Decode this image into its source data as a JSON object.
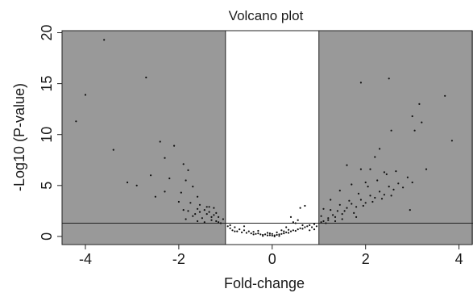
{
  "chart_data": {
    "type": "scatter",
    "title": "Volcano plot",
    "xlabel": "Fold-change",
    "ylabel": "-Log10 (P-value)",
    "xlim": [
      -4.5,
      4.3
    ],
    "ylim": [
      -0.8,
      20.2
    ],
    "x_ticks": [
      -4,
      -2,
      0,
      2,
      4
    ],
    "y_ticks": [
      0,
      5,
      10,
      15,
      20
    ],
    "x_tick_labels": [
      "-4",
      "-2",
      "0",
      "2",
      "4"
    ],
    "y_tick_labels": [
      "0",
      "5",
      "10",
      "15",
      "20"
    ],
    "fold_change_threshold": 1,
    "pvalue_threshold_log10": 1.3,
    "grid": false,
    "colors": {
      "shaded_region": "#999999",
      "point": "#111111",
      "axis": "#222222",
      "background": "#ffffff"
    },
    "points": [
      [
        -3.6,
        19.3
      ],
      [
        -4.0,
        13.9
      ],
      [
        -4.2,
        11.3
      ],
      [
        -2.7,
        15.6
      ],
      [
        -3.4,
        8.5
      ],
      [
        -2.4,
        9.3
      ],
      [
        -2.1,
        8.9
      ],
      [
        -2.3,
        7.7
      ],
      [
        -1.9,
        7.1
      ],
      [
        -1.8,
        6.5
      ],
      [
        -2.6,
        6.0
      ],
      [
        -2.2,
        5.7
      ],
      [
        -3.1,
        5.3
      ],
      [
        -2.9,
        5.0
      ],
      [
        -1.85,
        5.5
      ],
      [
        -1.7,
        4.9
      ],
      [
        -2.5,
        3.9
      ],
      [
        -2.0,
        3.4
      ],
      [
        -1.6,
        3.9
      ],
      [
        -1.55,
        3.1
      ],
      [
        -1.45,
        2.6
      ],
      [
        -1.35,
        2.4
      ],
      [
        -1.25,
        2.1
      ],
      [
        -1.15,
        1.9
      ],
      [
        -1.3,
        1.6
      ],
      [
        -1.8,
        2.5
      ],
      [
        -1.65,
        2.2
      ],
      [
        -1.5,
        1.8
      ],
      [
        -1.4,
        2.9
      ],
      [
        -1.2,
        1.5
      ],
      [
        -1.1,
        1.3
      ],
      [
        -1.05,
        1.7
      ],
      [
        -1.9,
        2.6
      ],
      [
        -1.7,
        2.0
      ],
      [
        -1.6,
        1.5
      ],
      [
        -1.75,
        3.3
      ],
      [
        -1.25,
        2.8
      ],
      [
        -1.45,
        1.4
      ],
      [
        -1.55,
        2.4
      ],
      [
        -1.95,
        4.3
      ],
      [
        -2.3,
        4.4
      ],
      [
        -1.35,
        2.9
      ],
      [
        -1.85,
        1.7
      ],
      [
        -1.15,
        1.4
      ],
      [
        -1.6,
        2.7
      ],
      [
        -1.4,
        2.2
      ],
      [
        -1.3,
        1.9
      ],
      [
        -1.2,
        2.3
      ],
      [
        -0.95,
        1.0
      ],
      [
        -0.9,
        0.8
      ],
      [
        -0.85,
        0.6
      ],
      [
        -0.8,
        0.9
      ],
      [
        -0.75,
        0.5
      ],
      [
        -0.7,
        0.7
      ],
      [
        -0.65,
        0.4
      ],
      [
        -0.6,
        0.6
      ],
      [
        -0.55,
        0.35
      ],
      [
        -0.5,
        0.5
      ],
      [
        -0.45,
        0.3
      ],
      [
        -0.4,
        0.45
      ],
      [
        -0.35,
        0.25
      ],
      [
        -0.3,
        0.3
      ],
      [
        -0.25,
        0.2
      ],
      [
        -0.2,
        0.15
      ],
      [
        -0.15,
        0.2
      ],
      [
        -0.1,
        0.1
      ],
      [
        -0.05,
        0.12
      ],
      [
        0.0,
        0.08
      ],
      [
        0.05,
        0.1
      ],
      [
        0.1,
        0.15
      ],
      [
        0.15,
        0.2
      ],
      [
        0.2,
        0.25
      ],
      [
        0.25,
        0.3
      ],
      [
        0.3,
        0.4
      ],
      [
        0.35,
        0.35
      ],
      [
        0.4,
        0.5
      ],
      [
        0.45,
        0.6
      ],
      [
        0.5,
        0.55
      ],
      [
        0.55,
        0.7
      ],
      [
        0.6,
        0.8
      ],
      [
        0.65,
        0.75
      ],
      [
        0.7,
        0.9
      ],
      [
        0.75,
        1.0
      ],
      [
        0.8,
        1.1
      ],
      [
        0.85,
        0.9
      ],
      [
        0.9,
        1.2
      ],
      [
        0.95,
        1.0
      ],
      [
        0.3,
        0.9
      ],
      [
        0.5,
        1.3
      ],
      [
        0.6,
        2.8
      ],
      [
        0.55,
        1.6
      ],
      [
        0.7,
        3.0
      ],
      [
        0.45,
        1.4
      ],
      [
        -0.6,
        1.0
      ],
      [
        -0.9,
        1.1
      ],
      [
        -0.8,
        0.5
      ],
      [
        0.4,
        1.9
      ],
      [
        0.65,
        1.1
      ],
      [
        0.2,
        0.6
      ],
      [
        -0.3,
        0.55
      ],
      [
        -0.1,
        0.35
      ],
      [
        0.1,
        0.4
      ],
      [
        0.35,
        0.65
      ],
      [
        0.25,
        0.5
      ],
      [
        -0.4,
        0.2
      ],
      [
        -0.2,
        0.05
      ],
      [
        0.0,
        0.25
      ],
      [
        0.15,
        0.05
      ],
      [
        -0.05,
        0.3
      ],
      [
        0.05,
        0.0
      ],
      [
        0.8,
        0.6
      ],
      [
        0.9,
        0.7
      ],
      [
        1.1,
        1.5
      ],
      [
        1.2,
        1.8
      ],
      [
        1.3,
        2.1
      ],
      [
        1.4,
        2.5
      ],
      [
        1.5,
        2.2
      ],
      [
        1.6,
        2.8
      ],
      [
        1.7,
        3.2
      ],
      [
        1.8,
        2.9
      ],
      [
        1.9,
        3.6
      ],
      [
        2.0,
        3.3
      ],
      [
        2.1,
        4.0
      ],
      [
        2.2,
        3.8
      ],
      [
        2.3,
        4.4
      ],
      [
        2.4,
        4.1
      ],
      [
        2.5,
        4.9
      ],
      [
        2.6,
        4.6
      ],
      [
        2.7,
        5.2
      ],
      [
        2.8,
        4.8
      ],
      [
        2.9,
        5.8
      ],
      [
        3.0,
        5.3
      ],
      [
        1.15,
        1.3
      ],
      [
        1.25,
        2.6
      ],
      [
        1.35,
        1.9
      ],
      [
        1.45,
        3.1
      ],
      [
        1.55,
        2.5
      ],
      [
        1.65,
        3.5
      ],
      [
        1.75,
        2.3
      ],
      [
        1.85,
        4.2
      ],
      [
        1.95,
        3.0
      ],
      [
        2.05,
        4.9
      ],
      [
        2.15,
        3.4
      ],
      [
        2.25,
        5.5
      ],
      [
        2.35,
        3.7
      ],
      [
        2.45,
        6.1
      ],
      [
        2.55,
        4.0
      ],
      [
        2.65,
        6.4
      ],
      [
        1.9,
        15.1
      ],
      [
        2.5,
        15.5
      ],
      [
        3.7,
        13.8
      ],
      [
        3.15,
        13.0
      ],
      [
        3.0,
        11.8
      ],
      [
        3.2,
        11.2
      ],
      [
        3.05,
        10.4
      ],
      [
        2.55,
        10.4
      ],
      [
        3.85,
        9.4
      ],
      [
        2.3,
        8.6
      ],
      [
        2.2,
        7.8
      ],
      [
        1.6,
        7.0
      ],
      [
        1.9,
        6.6
      ],
      [
        2.1,
        6.6
      ],
      [
        2.4,
        6.3
      ],
      [
        2.0,
        5.3
      ],
      [
        1.7,
        5.1
      ],
      [
        1.45,
        4.5
      ],
      [
        1.25,
        3.6
      ],
      [
        1.05,
        2.0
      ],
      [
        1.1,
        2.7
      ],
      [
        3.3,
        6.6
      ],
      [
        2.95,
        2.6
      ],
      [
        1.35,
        1.5
      ],
      [
        1.5,
        1.7
      ],
      [
        1.2,
        1.6
      ],
      [
        1.05,
        1.4
      ],
      [
        1.8,
        1.9
      ]
    ]
  }
}
